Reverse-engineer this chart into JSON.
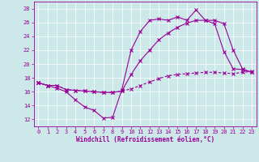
{
  "xlabel": "Windchill (Refroidissement éolien,°C)",
  "bg_color": "#cce8e8",
  "line_color": "#990099",
  "xlim": [
    -0.5,
    23.5
  ],
  "ylim": [
    11,
    29
  ],
  "yticks": [
    12,
    14,
    16,
    18,
    20,
    22,
    24,
    26,
    28
  ],
  "xticks": [
    0,
    1,
    2,
    3,
    4,
    5,
    6,
    7,
    8,
    9,
    10,
    11,
    12,
    13,
    14,
    15,
    16,
    17,
    18,
    19,
    20,
    21,
    22,
    23
  ],
  "line1_x": [
    0,
    1,
    2,
    3,
    4,
    5,
    6,
    7,
    8,
    9,
    10,
    11,
    12,
    13,
    14,
    15,
    16,
    17,
    18,
    19,
    20,
    21,
    22,
    23
  ],
  "line1_y": [
    17.3,
    16.9,
    16.5,
    16.0,
    14.8,
    13.8,
    13.3,
    12.2,
    12.3,
    16.3,
    22.0,
    24.7,
    26.3,
    26.5,
    26.3,
    26.8,
    26.3,
    27.8,
    26.3,
    25.8,
    21.8,
    19.3,
    19.2,
    18.8
  ],
  "line2_x": [
    0,
    1,
    2,
    3,
    4,
    5,
    6,
    7,
    8,
    9,
    10,
    11,
    12,
    13,
    14,
    15,
    16,
    17,
    18,
    19,
    20,
    21,
    22,
    23
  ],
  "line2_y": [
    17.3,
    16.9,
    16.9,
    16.3,
    16.2,
    16.1,
    16.0,
    15.9,
    15.9,
    16.1,
    16.4,
    16.9,
    17.4,
    17.9,
    18.3,
    18.5,
    18.6,
    18.7,
    18.8,
    18.8,
    18.7,
    18.6,
    18.8,
    18.9
  ],
  "line3_x": [
    0,
    1,
    2,
    3,
    4,
    5,
    6,
    7,
    8,
    9,
    10,
    11,
    12,
    13,
    14,
    15,
    16,
    17,
    18,
    19,
    20,
    21,
    22,
    23
  ],
  "line3_y": [
    17.3,
    16.9,
    16.9,
    16.3,
    16.2,
    16.1,
    16.0,
    15.9,
    15.9,
    16.1,
    18.5,
    20.5,
    22.0,
    23.5,
    24.5,
    25.3,
    25.9,
    26.3,
    26.3,
    26.3,
    25.8,
    22.0,
    19.3,
    18.8
  ],
  "tick_fontsize": 5,
  "xlabel_fontsize": 5.5,
  "marker_size": 2.5,
  "line_width": 0.8
}
